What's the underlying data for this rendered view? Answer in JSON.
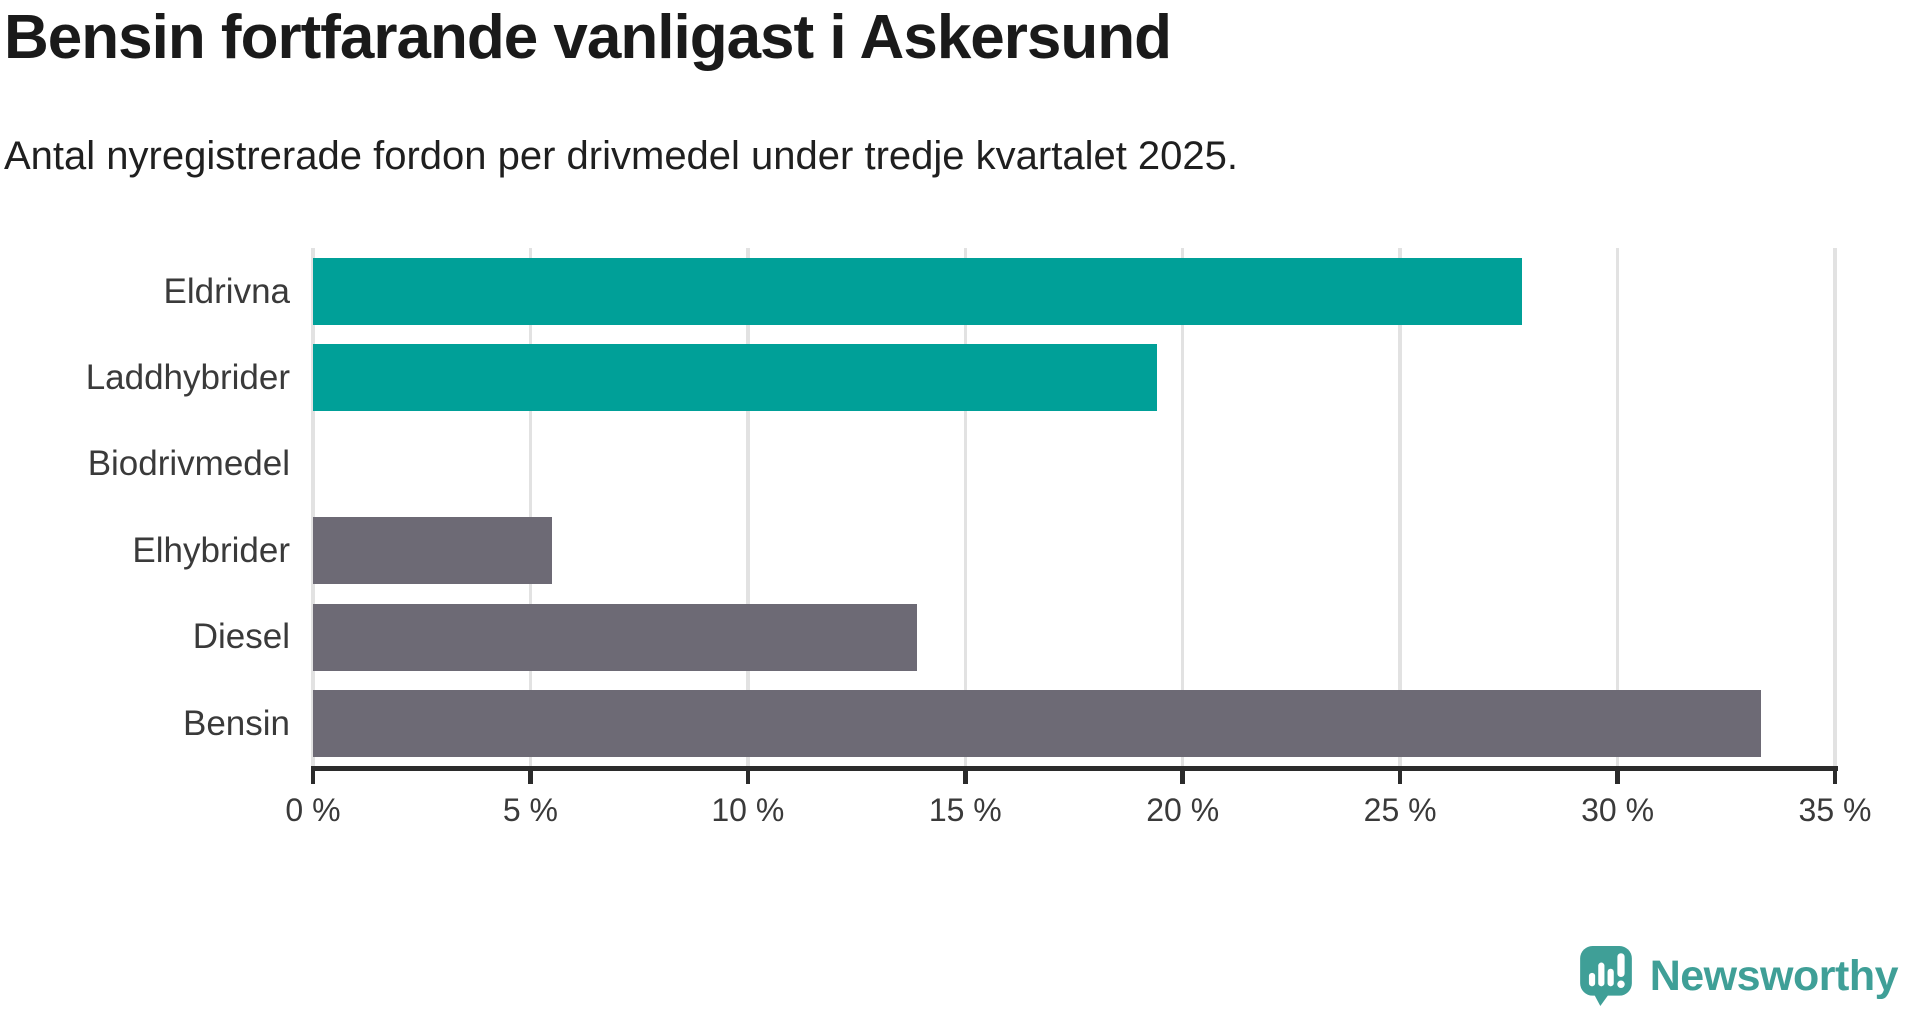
{
  "title": "Bensin fortfarande vanligast i Askersund",
  "subtitle": "Antal nyregistrerade fordon per drivmedel under tredje kvartalet 2025.",
  "colors": {
    "electric_bar": "#00a098",
    "fossil_bar": "#6d6a75",
    "gridline": "#e2e2e2",
    "axis": "#2b2b2b",
    "label_text": "#3a3a3a",
    "title_text": "#1a1a1a",
    "logo_teal": "#3f9f97"
  },
  "chart_data": {
    "type": "bar",
    "orientation": "horizontal",
    "title": "Bensin fortfarande vanligast i Askersund",
    "subtitle": "Antal nyregistrerade fordon per drivmedel under tredje kvartalet 2025.",
    "categories": [
      "Eldrivna",
      "Laddhybrider",
      "Biodrivmedel",
      "Elhybrider",
      "Diesel",
      "Bensin"
    ],
    "values": [
      27.8,
      19.4,
      0,
      5.5,
      13.9,
      33.3
    ],
    "unit": "%",
    "bar_colors": [
      "#00a098",
      "#00a098",
      "#6d6a75",
      "#6d6a75",
      "#6d6a75",
      "#6d6a75"
    ],
    "xlim": [
      0,
      35
    ],
    "xticks": [
      0,
      5,
      10,
      15,
      20,
      25,
      30,
      35
    ],
    "xtick_labels": [
      "0 %",
      "5 %",
      "10 %",
      "15 %",
      "20 %",
      "25 %",
      "30 %",
      "35 %"
    ],
    "grid": true,
    "legend": false
  },
  "branding": {
    "name": "Newsworthy"
  }
}
